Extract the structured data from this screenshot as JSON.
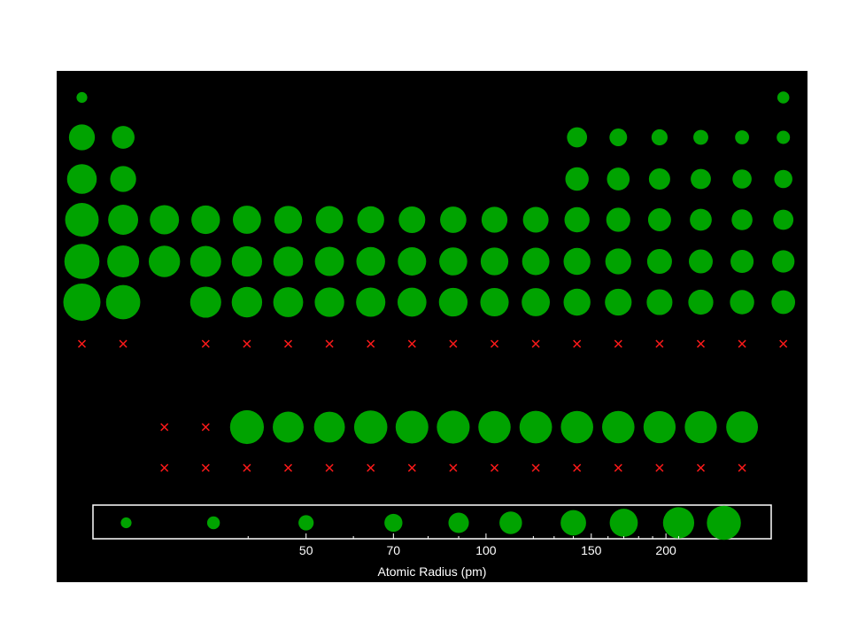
{
  "chart_data": {
    "type": "scatter",
    "title": "",
    "description_source": "bubble periodic table; bubble area encodes atomic radius; x marks = no data",
    "colors": {
      "background": "#000000",
      "bubble": "#00a300",
      "missing": "#ff1a1a",
      "frame": "#ffffff",
      "text": "#ffffff"
    },
    "grid": false,
    "main_table": [
      [
        25,
        null,
        null,
        null,
        null,
        null,
        null,
        null,
        null,
        null,
        null,
        null,
        null,
        null,
        null,
        null,
        null,
        31
      ],
      [
        145,
        112,
        null,
        null,
        null,
        null,
        null,
        null,
        null,
        null,
        null,
        null,
        87,
        67,
        56,
        48,
        42,
        38
      ],
      [
        190,
        145,
        null,
        null,
        null,
        null,
        null,
        null,
        null,
        null,
        null,
        null,
        118,
        111,
        98,
        88,
        79,
        71
      ],
      [
        243,
        194,
        184,
        176,
        171,
        166,
        161,
        156,
        152,
        149,
        145,
        142,
        136,
        125,
        114,
        103,
        94,
        88
      ],
      [
        265,
        219,
        212,
        206,
        198,
        190,
        183,
        178,
        173,
        169,
        165,
        161,
        156,
        145,
        133,
        123,
        115,
        108
      ],
      [
        298,
        253,
        null,
        208,
        200,
        193,
        188,
        185,
        180,
        177,
        174,
        171,
        156,
        154,
        143,
        135,
        127,
        120
      ],
      [
        "x",
        "x",
        null,
        "x",
        "x",
        "x",
        "x",
        "x",
        "x",
        "x",
        "x",
        "x",
        "x",
        "x",
        "x",
        "x",
        "x",
        "x"
      ]
    ],
    "f_block": [
      [
        "x",
        "x",
        247,
        206,
        205,
        238,
        231,
        233,
        225,
        228,
        226,
        226,
        222,
        222,
        217
      ],
      [
        "x",
        "x",
        "x",
        "x",
        "x",
        "x",
        "x",
        "x",
        "x",
        "x",
        "x",
        "x",
        "x",
        "x",
        "x"
      ]
    ],
    "legend": {
      "values": [
        25,
        35,
        50,
        70,
        90,
        110,
        140,
        170,
        210,
        250
      ],
      "ticks": [
        50,
        70,
        100,
        150,
        200
      ],
      "minor_ticks": [
        40,
        60,
        80,
        90,
        120,
        130,
        140,
        160,
        170,
        180,
        190,
        210
      ],
      "xlabel": "Atomic Radius (pm)",
      "scale": "log",
      "xlim": [
        22,
        300
      ]
    }
  }
}
